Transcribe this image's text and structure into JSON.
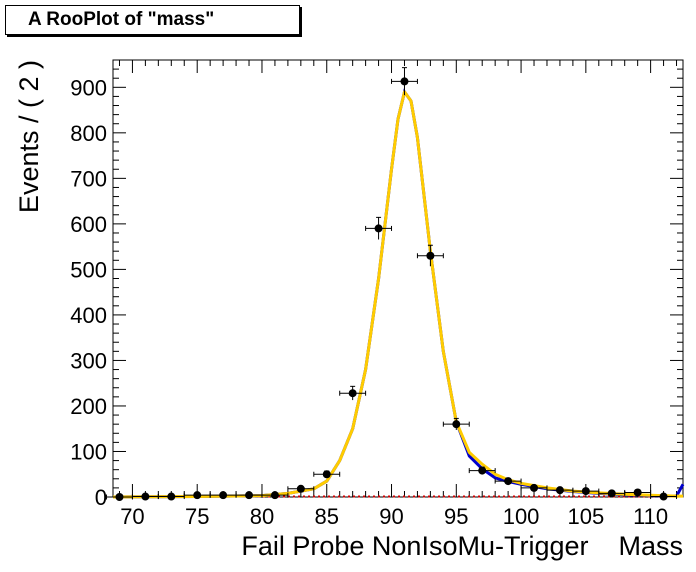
{
  "chart_data": {
    "type": "scatter",
    "title": "A RooPlot of \"mass\"",
    "xlabel": "Fail Probe NonIsoMu-Trigger    Mass",
    "ylabel": "Events / ( 2 )",
    "xlim": [
      68.5,
      112.5
    ],
    "ylim": [
      0,
      960
    ],
    "x_ticks": [
      70,
      75,
      80,
      85,
      90,
      95,
      100,
      105,
      110
    ],
    "y_ticks": [
      0,
      100,
      200,
      300,
      400,
      500,
      600,
      700,
      800,
      900
    ],
    "bin_width": 2,
    "series": [
      {
        "style": "data-points",
        "x": [
          69,
          71,
          73,
          75,
          77,
          79,
          81,
          83,
          85,
          87,
          89,
          91,
          93,
          95,
          97,
          99,
          101,
          103,
          105,
          107,
          109,
          111
        ],
        "values": [
          0,
          1,
          1,
          4,
          4,
          4,
          4,
          18,
          50,
          228,
          590,
          913,
          530,
          160,
          58,
          35,
          20,
          15,
          13,
          8,
          10,
          1
        ]
      },
      {
        "style": "background-fit",
        "color": "#cc0000",
        "x": [
          68.5,
          112.5
        ],
        "values": [
          1,
          1
        ]
      },
      {
        "style": "signal-fit",
        "color": "#0000cc",
        "x": [
          68.5,
          75,
          80,
          82,
          84,
          85,
          86,
          87,
          88,
          89,
          90,
          90.5,
          91,
          91.5,
          92,
          93,
          94,
          95,
          96,
          97,
          98,
          99,
          100,
          102,
          104,
          106,
          108,
          110,
          112,
          112.5
        ],
        "values": [
          0,
          1,
          3,
          8,
          18,
          35,
          80,
          150,
          280,
          480,
          720,
          830,
          890,
          870,
          790,
          540,
          320,
          165,
          90,
          62,
          42,
          34,
          28,
          18,
          12,
          8,
          5,
          3,
          2,
          28
        ]
      },
      {
        "style": "total-fit",
        "color": "#ffcc00",
        "x": [
          68.5,
          75,
          80,
          82,
          84,
          85,
          86,
          87,
          88,
          89,
          90,
          90.5,
          91,
          91.5,
          92,
          93,
          94,
          95,
          96,
          97,
          98,
          99,
          100,
          102,
          104,
          106,
          108,
          110,
          112,
          112.5
        ],
        "values": [
          0,
          1,
          3,
          8,
          18,
          35,
          80,
          150,
          280,
          480,
          720,
          830,
          890,
          870,
          790,
          540,
          320,
          165,
          98,
          72,
          50,
          38,
          30,
          20,
          13,
          9,
          6,
          4,
          2,
          2
        ]
      }
    ]
  }
}
